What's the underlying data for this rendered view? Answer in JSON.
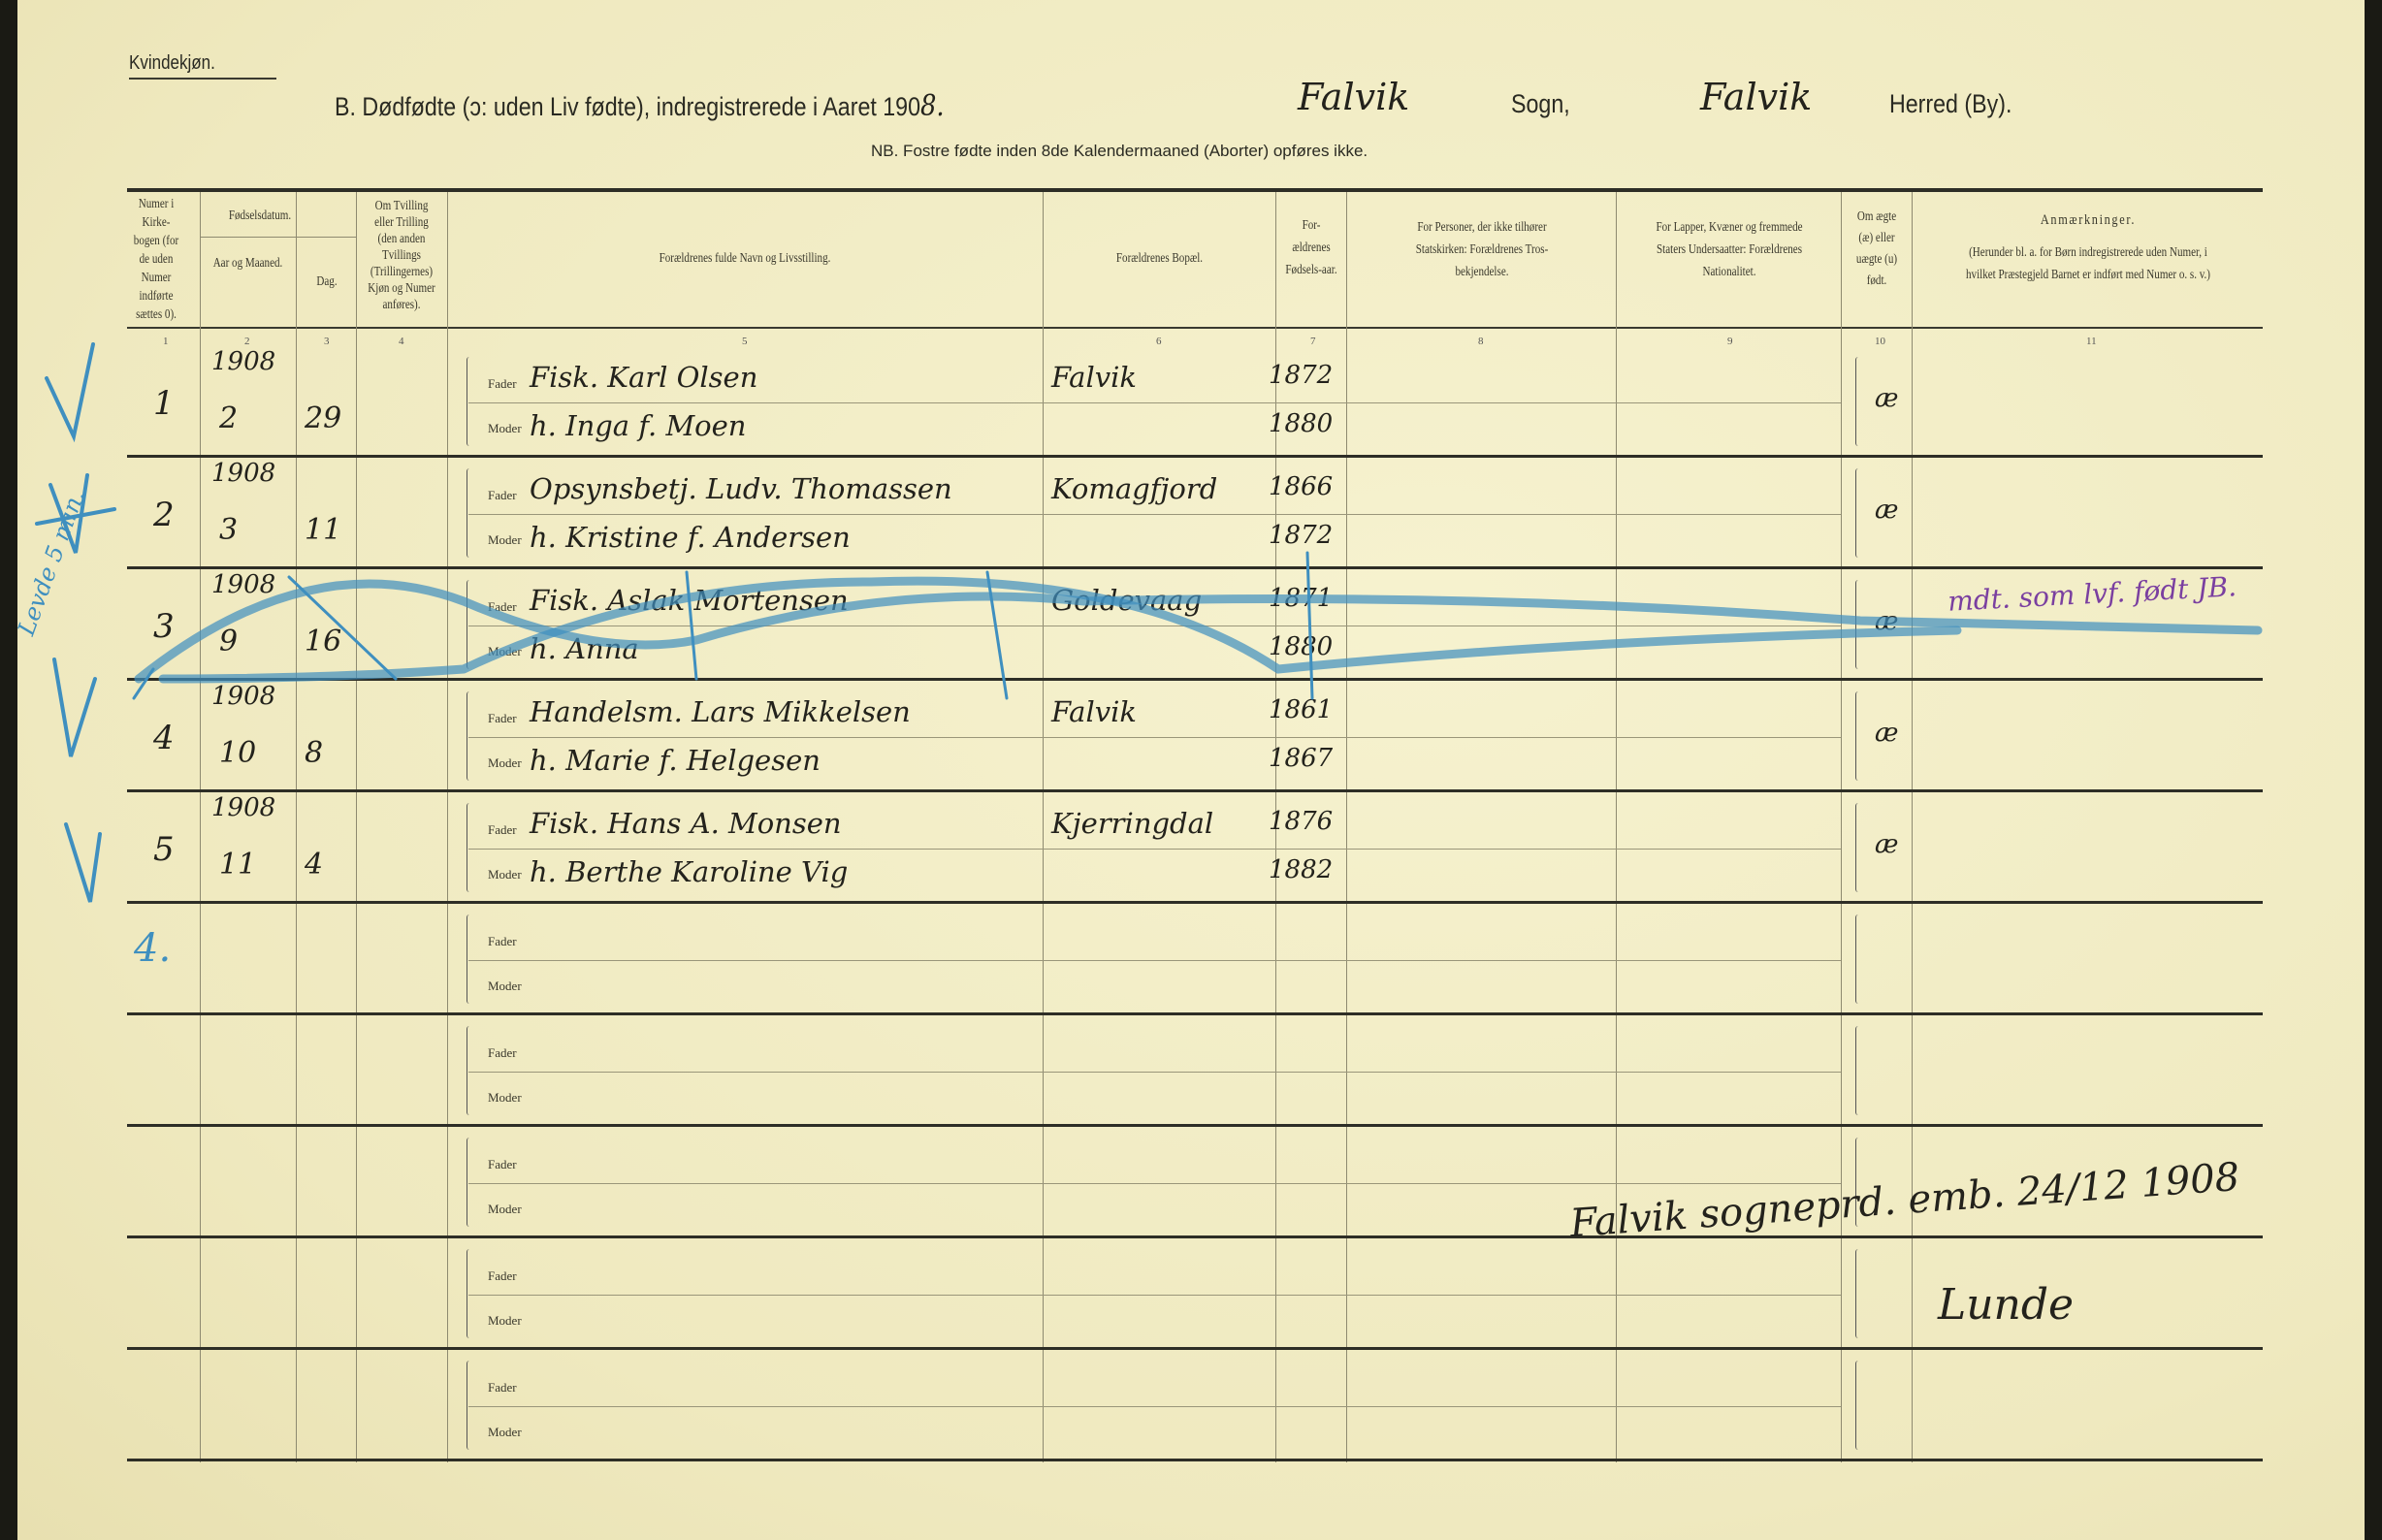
{
  "header": {
    "sex": "Kvindekjøn.",
    "title_prefix": "B.  Dødfødte (ɔ: uden Liv fødte), indregistrerede i Aaret 190",
    "year_hw": "8.",
    "parish_hw": "Falvik",
    "parish_label": "Sogn,",
    "district_hw": "Falvik",
    "district_label": "Herred (By).",
    "note": "NB.  Fostre fødte inden 8de Kalendermaaned (Aborter) opføres ikke."
  },
  "columns": {
    "c1": "Numer i Kirke-bogen (for de uden Numer indførte sættes 0).",
    "c23_group": "Fødselsdatum.",
    "c2": "Aar og Maaned.",
    "c3": "Dag.",
    "c4": "Om Tvilling eller Trilling (den anden Tvillings (Trillingernes) Kjøn og Numer anføres).",
    "c5": "Forældrenes fulde Navn og Livsstilling.",
    "c6": "Forældrenes Bopæl.",
    "c7": "For-ældrenes Fødsels-aar.",
    "c8": "For Personer, der ikke tilhører Statskirken: Forældrenes Tros-bekjendelse.",
    "c9": "For Lapper, Kvæner og fremmede Staters Undersaatter: Forældrenes Nationalitet.",
    "c10": "Om ægte (æ) eller uægte (u) født.",
    "c11_title": "Anmærkninger.",
    "c11": "(Herunder bl. a. for Børn indregistrerede uden Numer, i hvilket Præstegjeld Barnet er indført med Numer o. s. v.)",
    "numbers": [
      "1",
      "2",
      "3",
      "4",
      "5",
      "6",
      "7",
      "8",
      "9",
      "10",
      "11"
    ]
  },
  "labels": {
    "father": "Fader",
    "mother": "Moder"
  },
  "rows": [
    {
      "num": "1",
      "year": "1908",
      "month": "2",
      "day": "29",
      "father": "Fisk. Karl Olsen",
      "mother": "h. Inga f. Moen",
      "residence": "Falvik",
      "father_born": "1872",
      "mother_born": "1880",
      "legit": "æ",
      "remark": ""
    },
    {
      "num": "2",
      "year": "1908",
      "month": "3",
      "day": "11",
      "father": "Opsynsbetj. Ludv. Thomassen",
      "mother": "h. Kristine f. Andersen",
      "residence": "Komagfjord",
      "father_born": "1866",
      "mother_born": "1872",
      "legit": "æ",
      "remark": ""
    },
    {
      "num": "3",
      "year": "1908",
      "month": "9",
      "day": "16",
      "father": "Fisk. Aslak Mortensen",
      "mother": "h. Anna",
      "residence": "Goldevaag",
      "father_born": "1871",
      "mother_born": "1880",
      "legit": "æ",
      "remark": "mdt. som lvf. født JB."
    },
    {
      "num": "4",
      "year": "1908",
      "month": "10",
      "day": "8",
      "father": "Handelsm. Lars Mikkelsen",
      "mother": "h. Marie f. Helgesen",
      "residence": "Falvik",
      "father_born": "1861",
      "mother_born": "1867",
      "legit": "æ",
      "remark": ""
    },
    {
      "num": "5",
      "year": "1908",
      "month": "11",
      "day": "4",
      "father": "Fisk. Hans A. Monsen",
      "mother": "h. Berthe Karoline Vig",
      "residence": "Kjerringdal",
      "father_born": "1876",
      "mother_born": "1882",
      "legit": "æ",
      "remark": ""
    },
    {},
    {},
    {},
    {},
    {}
  ],
  "margin_notes": {
    "row3": "Levde 5 min.",
    "row6": "4."
  },
  "closing": {
    "certification": "Falvik sogneprd. emb. 24/12 1908",
    "signature": "Lunde"
  },
  "colors": {
    "paper": "#f3efc6",
    "ink": "#23221c",
    "blue_pencil": "#3f8fbf",
    "purple_ink": "#7a3fa0"
  }
}
